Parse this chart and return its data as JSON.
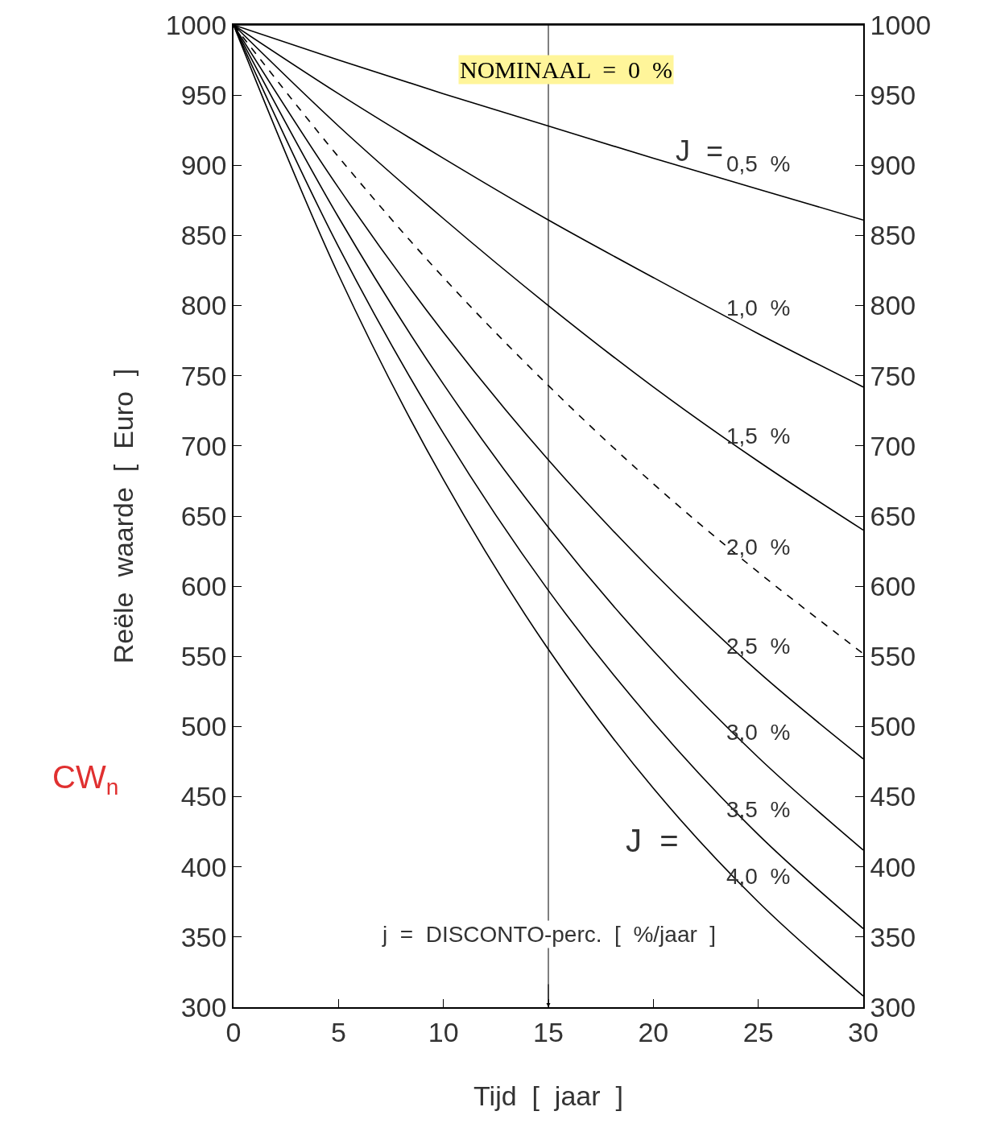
{
  "chart_data": {
    "type": "line",
    "xlabel": "Tijd  [  jaar  ]",
    "ylabel": "Reële  waarde  [  Euro  ]",
    "x": [
      0,
      5,
      10,
      15,
      20,
      25,
      30
    ],
    "series": [
      {
        "color": "#000000",
        "values": [
          1000,
          1000,
          1000,
          1000,
          1000,
          1000,
          1000
        ]
      },
      {
        "name": "0,5  %",
        "color": "#000000",
        "values": [
          1000,
          975,
          951,
          928,
          905,
          883,
          861
        ]
      },
      {
        "name": "1,0  %",
        "color": "#000000",
        "values": [
          1000,
          951,
          905,
          861,
          820,
          780,
          742
        ]
      },
      {
        "name": "1,5  %",
        "color": "#000000",
        "values": [
          1000,
          928,
          862,
          800,
          742,
          689,
          640
        ]
      },
      {
        "name": "2,0  %",
        "color": "#000000",
        "line_style": "dashed",
        "values": [
          1000,
          906,
          820,
          743,
          673,
          610,
          552
        ]
      },
      {
        "name": "2,5  %",
        "color": "#000000",
        "values": [
          1000,
          884,
          781,
          690,
          610,
          539,
          477
        ]
      },
      {
        "name": "3,0  %",
        "color": "#000000",
        "values": [
          1000,
          863,
          744,
          642,
          554,
          478,
          412
        ]
      },
      {
        "name": "3,5  %",
        "color": "#000000",
        "values": [
          1000,
          842,
          709,
          597,
          503,
          423,
          356
        ]
      },
      {
        "name": "4,0  %",
        "color": "#000000",
        "values": [
          1000,
          822,
          676,
          555,
          456,
          375,
          308
        ]
      }
    ],
    "xlim": [
      0,
      30
    ],
    "xticks": [
      0,
      5,
      10,
      15,
      20,
      25,
      30
    ],
    "ylim": [
      300,
      1000
    ],
    "yticks": [
      300,
      350,
      400,
      450,
      500,
      550,
      600,
      650,
      700,
      750,
      800,
      850,
      900,
      950,
      1000
    ],
    "y2lim": [
      300,
      1000
    ],
    "y2ticks": [
      300,
      350,
      400,
      450,
      500,
      550,
      600,
      650,
      700,
      750,
      800,
      850,
      900,
      950,
      1000
    ],
    "ref_lines": [
      {
        "axis": "x",
        "value": 15,
        "color": "#000000"
      }
    ],
    "annotations": [
      "NOMINAAL  =  0  %",
      "J  =",
      "J  =",
      "j  =  DISCONTO-perc.  [  %/jaar  ]",
      "CW$_{n}$"
    ],
    "grid": false,
    "legend": false,
    "line_style": "solid",
    "marker": "none"
  }
}
